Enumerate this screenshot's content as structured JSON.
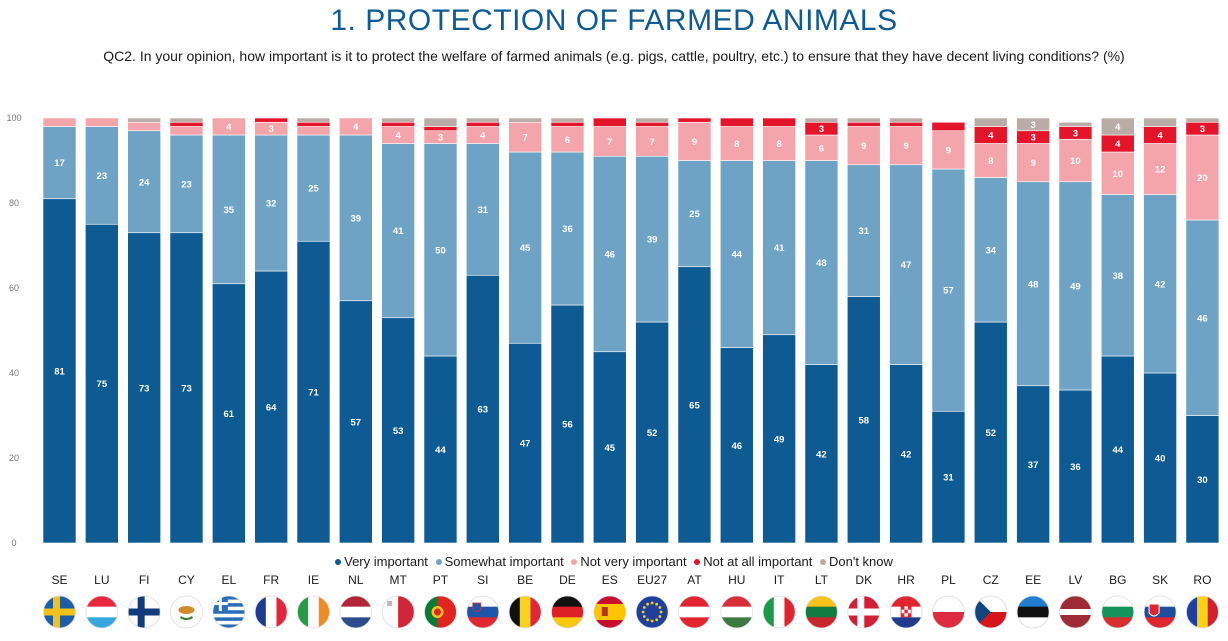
{
  "header": {
    "title": "1. PROTECTION OF FARMED ANIMALS",
    "question": "QC2. In your opinion, how important is it to protect the welfare of farmed animals (e.g. pigs, cattle, poultry, etc.) to ensure that they have decent living conditions? (%)"
  },
  "chart_data": {
    "type": "bar",
    "stacked": true,
    "title": "1. PROTECTION OF FARMED ANIMALS",
    "ylim": [
      0,
      100
    ],
    "yticks": [
      0,
      20,
      40,
      60,
      80,
      100
    ],
    "categories": [
      "SE",
      "LU",
      "FI",
      "CY",
      "EL",
      "FR",
      "IE",
      "NL",
      "MT",
      "PT",
      "SI",
      "BE",
      "DE",
      "ES",
      "EU27",
      "AT",
      "HU",
      "IT",
      "LT",
      "DK",
      "HR",
      "PL",
      "CZ",
      "EE",
      "LV",
      "BG",
      "SK",
      "RO"
    ],
    "series": [
      {
        "name": "Very important",
        "color": "#0e5a92",
        "values": [
          81,
          75,
          73,
          73,
          61,
          64,
          71,
          57,
          53,
          44,
          63,
          47,
          56,
          45,
          52,
          65,
          46,
          49,
          42,
          58,
          42,
          31,
          52,
          37,
          36,
          44,
          40,
          30
        ],
        "labels": [
          "81",
          "75",
          "73",
          "73",
          "61",
          "64",
          "71",
          "57",
          "53",
          "44",
          "63",
          "47",
          "56",
          "45",
          "52",
          "65",
          "46",
          "49",
          "42",
          "58",
          "42",
          "31",
          "52",
          "37",
          "36",
          "44",
          "40",
          "30"
        ]
      },
      {
        "name": "Somewhat important",
        "color": "#6fa3c6",
        "values": [
          17,
          23,
          24,
          23,
          35,
          32,
          25,
          39,
          41,
          50,
          31,
          45,
          36,
          46,
          39,
          25,
          44,
          41,
          48,
          31,
          47,
          57,
          34,
          48,
          49,
          38,
          42,
          46
        ],
        "labels": [
          "17",
          "23",
          "24",
          "23",
          "35",
          "32",
          "25",
          "39",
          "41",
          "50",
          "31",
          "45",
          "36",
          "46",
          "39",
          "25",
          "44",
          "41",
          "48",
          "31",
          "47",
          "57",
          "34",
          "48",
          "49",
          "38",
          "42",
          "46"
        ]
      },
      {
        "name": "Not very important",
        "color": "#f4a5ab",
        "values": [
          2,
          2,
          2,
          2,
          4,
          3,
          2,
          4,
          4,
          3,
          4,
          7,
          6,
          7,
          7,
          9,
          8,
          8,
          6,
          9,
          9,
          9,
          8,
          9,
          10,
          10,
          12,
          20
        ],
        "labels": [
          "",
          "",
          "",
          "",
          "4",
          "3",
          "",
          "4",
          "4",
          "3",
          "4",
          "7",
          "6",
          "7",
          "7",
          "9",
          "8",
          "8",
          "6",
          "9",
          "9",
          "9",
          "8",
          "9",
          "10",
          "10",
          "12",
          "20"
        ]
      },
      {
        "name": "Not at all important",
        "color": "#e4142b",
        "values": [
          0,
          0,
          0,
          1,
          0,
          1,
          1,
          0,
          1,
          1,
          1,
          0,
          1,
          2,
          1,
          1,
          2,
          2,
          3,
          1,
          1,
          2,
          4,
          3,
          3,
          4,
          4,
          3
        ],
        "labels": [
          "",
          "",
          "",
          "",
          "",
          "",
          "",
          "",
          "",
          "",
          "",
          "",
          "",
          "",
          "",
          "",
          "",
          "",
          "3",
          "",
          "",
          "",
          "4",
          "3",
          "3",
          "4",
          "4",
          "3"
        ]
      },
      {
        "name": "Don't know",
        "color": "#b9aba5",
        "values": [
          0,
          0,
          1,
          1,
          0,
          0,
          1,
          0,
          1,
          2,
          1,
          1,
          1,
          0,
          1,
          0,
          0,
          0,
          1,
          1,
          1,
          0,
          2,
          3,
          1,
          4,
          2,
          1
        ],
        "labels": [
          "",
          "",
          "",
          "",
          "",
          "",
          "",
          "",
          "",
          "",
          "",
          "",
          "",
          "",
          "",
          "",
          "",
          "",
          "",
          "",
          "",
          "",
          "",
          "3",
          "",
          "4",
          "",
          ""
        ]
      }
    ],
    "legend_position": "bottom"
  },
  "legend": [
    {
      "label": "Very important",
      "color": "#0e5a92"
    },
    {
      "label": "Somewhat important",
      "color": "#6fa3c6"
    },
    {
      "label": "Not very important",
      "color": "#f4a5ab"
    },
    {
      "label": "Not at all important",
      "color": "#e4142b"
    },
    {
      "label": "Don't know",
      "color": "#b9aba5"
    }
  ],
  "flags": [
    "sweden-flag",
    "luxembourg-flag",
    "finland-flag",
    "cyprus-flag",
    "greece-flag",
    "france-flag",
    "ireland-flag",
    "netherlands-flag",
    "malta-flag",
    "portugal-flag",
    "slovenia-flag",
    "belgium-flag",
    "germany-flag",
    "spain-flag",
    "eu-flag",
    "austria-flag",
    "hungary-flag",
    "italy-flag",
    "lithuania-flag",
    "denmark-flag",
    "croatia-flag",
    "poland-flag",
    "czechia-flag",
    "estonia-flag",
    "latvia-flag",
    "bulgaria-flag",
    "slovakia-flag",
    "romania-flag"
  ]
}
